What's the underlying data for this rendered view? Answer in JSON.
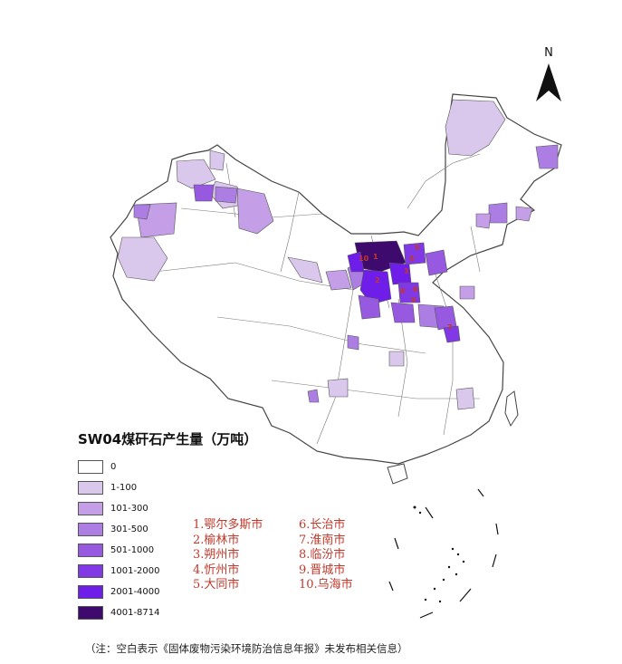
{
  "compass": {
    "label": "N",
    "icon": "north-arrow-icon"
  },
  "legend": {
    "title": "SW04煤矸石产生量（万吨）",
    "items": [
      {
        "label": "0",
        "color": "#ffffff"
      },
      {
        "label": "1-100",
        "color": "#d9c7ec"
      },
      {
        "label": "101-300",
        "color": "#c49ee6"
      },
      {
        "label": "301-500",
        "color": "#ac7ee3"
      },
      {
        "label": "501-1000",
        "color": "#9659e0"
      },
      {
        "label": "1001-2000",
        "color": "#8139e5"
      },
      {
        "label": "2001-4000",
        "color": "#6e1ee8"
      },
      {
        "label": "4001-8714",
        "color": "#3f0a6e"
      }
    ]
  },
  "top_cities": [
    "1.鄂尔多斯市",
    "2.榆林市",
    "3.朔州市",
    "4.忻州市",
    "5.大同市",
    "6.长治市",
    "7.淮南市",
    "8.临汾市",
    "9.晋城市",
    "10.乌海市"
  ],
  "map_labels": [
    "10",
    "1",
    "2",
    "3",
    "4",
    "5",
    "6",
    "7",
    "8",
    "9"
  ],
  "note": "（注：空白表示《固体废物污染环境防治信息年报》未发布相关信息）"
}
